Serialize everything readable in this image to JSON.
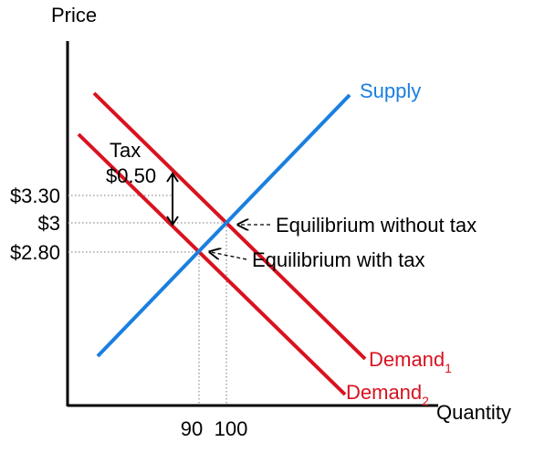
{
  "axes": {
    "y_title": "Price",
    "x_title": "Quantity"
  },
  "price_ticks": [
    "$3.30",
    "$3",
    "$2.80"
  ],
  "quantity_ticks": [
    "90",
    "100"
  ],
  "curves": {
    "supply": {
      "label": "Supply",
      "color": "#1a7fe0"
    },
    "demand1": {
      "label": "Demand",
      "subscript": "1",
      "color": "#d9121f"
    },
    "demand2": {
      "label": "Demand",
      "subscript": "2",
      "color": "#d9121f"
    }
  },
  "tax": {
    "label": "Tax",
    "amount": "$0.50"
  },
  "annotations": {
    "without_tax": "Equilibrium without tax",
    "with_tax": "Equilibrium with tax"
  }
}
